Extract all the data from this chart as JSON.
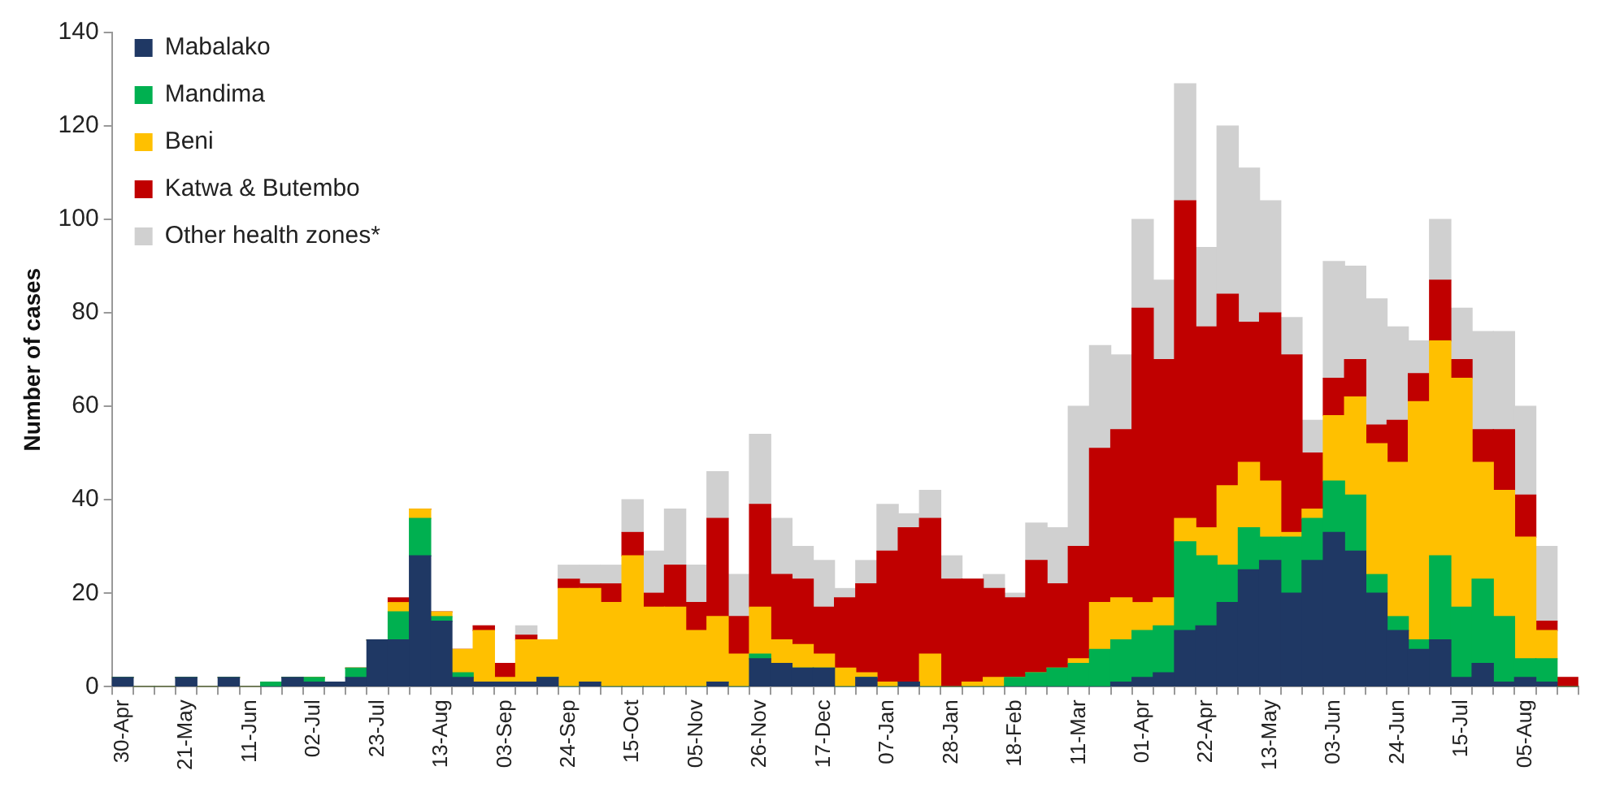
{
  "chart_data": {
    "type": "bar",
    "stacked": true,
    "ylabel": "Number of cases",
    "ylim": [
      0,
      140
    ],
    "yticks": [
      0,
      20,
      40,
      60,
      80,
      100,
      120,
      140
    ],
    "grid": false,
    "legend": "top left",
    "categories": [
      "30-Apr",
      null,
      null,
      "21-May",
      null,
      null,
      "11-Jun",
      null,
      null,
      "02-Jul",
      null,
      null,
      "23-Jul",
      null,
      null,
      "13-Aug",
      null,
      null,
      "03-Sep",
      null,
      null,
      "24-Sep",
      null,
      null,
      "15-Oct",
      null,
      null,
      "05-Nov",
      null,
      null,
      "26-Nov",
      null,
      null,
      "17-Dec",
      null,
      null,
      "07-Jan",
      null,
      null,
      "28-Jan",
      null,
      null,
      "18-Feb",
      null,
      null,
      "11-Mar",
      null,
      null,
      "01-Apr",
      null,
      null,
      "22-Apr",
      null,
      null,
      "13-May",
      null,
      null,
      "03-Jun",
      null,
      null,
      "24-Jun",
      null,
      null,
      "15-Jul",
      null,
      null,
      "05-Aug",
      null,
      null
    ],
    "series": [
      {
        "name": "Mabalako",
        "color": "#1f3864",
        "values": [
          2,
          0,
          0,
          2,
          0,
          2,
          0,
          0,
          2,
          1,
          1,
          2,
          10,
          10,
          28,
          14,
          2,
          1,
          1,
          1,
          2,
          0,
          1,
          0,
          0,
          0,
          0,
          0,
          1,
          0,
          6,
          5,
          4,
          4,
          0,
          2,
          0,
          1,
          0,
          0,
          0,
          0,
          0,
          0,
          0,
          0,
          0,
          1,
          2,
          3,
          12,
          13,
          18,
          25,
          27,
          20,
          27,
          33,
          29,
          20,
          12,
          8,
          10,
          2,
          5,
          1,
          2,
          1,
          0
        ]
      },
      {
        "name": "Mandima",
        "color": "#00b050",
        "values": [
          0,
          0,
          0,
          0,
          0,
          0,
          0,
          1,
          0,
          1,
          0,
          2,
          0,
          6,
          8,
          1,
          1,
          0,
          0,
          0,
          0,
          0,
          0,
          0,
          0,
          0,
          0,
          0,
          0,
          0,
          1,
          0,
          0,
          0,
          0,
          0,
          0,
          0,
          0,
          0,
          0,
          0,
          2,
          3,
          4,
          5,
          8,
          9,
          10,
          10,
          19,
          15,
          8,
          9,
          5,
          12,
          9,
          11,
          12,
          4,
          3,
          2,
          18,
          15,
          18,
          14,
          4,
          5,
          0
        ]
      },
      {
        "name": "Beni",
        "color": "#ffc000",
        "values": [
          0,
          0,
          0,
          0,
          0,
          0,
          0,
          0,
          0,
          0,
          0,
          0,
          0,
          2,
          2,
          1,
          5,
          11,
          1,
          9,
          8,
          21,
          20,
          18,
          28,
          17,
          17,
          12,
          14,
          7,
          10,
          5,
          5,
          3,
          4,
          1,
          1,
          0,
          7,
          0,
          1,
          2,
          0,
          0,
          0,
          1,
          10,
          9,
          6,
          6,
          5,
          6,
          17,
          14,
          12,
          1,
          2,
          14,
          21,
          28,
          33,
          51,
          46,
          49,
          25,
          27,
          26,
          6,
          0
        ]
      },
      {
        "name": "Katwa & Butembo",
        "color": "#c00000",
        "values": [
          0,
          0,
          0,
          0,
          0,
          0,
          0,
          0,
          0,
          0,
          0,
          0,
          0,
          1,
          0,
          0,
          0,
          1,
          3,
          1,
          0,
          2,
          1,
          4,
          5,
          3,
          9,
          6,
          21,
          8,
          22,
          14,
          14,
          10,
          15,
          19,
          28,
          33,
          29,
          23,
          22,
          19,
          17,
          24,
          18,
          24,
          33,
          36,
          63,
          51,
          68,
          43,
          41,
          30,
          36,
          38,
          12,
          8,
          8,
          4,
          9,
          6,
          13,
          4,
          7,
          13,
          9,
          2,
          2
        ]
      },
      {
        "name": "Other health zones*",
        "color": "#d0d0d0",
        "values": [
          0,
          0,
          0,
          0,
          0,
          0,
          0,
          0,
          0,
          0,
          0,
          0,
          0,
          0,
          0,
          0,
          0,
          0,
          0,
          2,
          0,
          3,
          4,
          4,
          7,
          9,
          12,
          8,
          10,
          9,
          15,
          12,
          7,
          10,
          2,
          5,
          10,
          3,
          6,
          5,
          0,
          3,
          1,
          8,
          12,
          30,
          22,
          16,
          19,
          17,
          25,
          17,
          36,
          33,
          24,
          8,
          7,
          25,
          20,
          27,
          20,
          7,
          13,
          11,
          21,
          21,
          19,
          16,
          0
        ]
      }
    ]
  }
}
